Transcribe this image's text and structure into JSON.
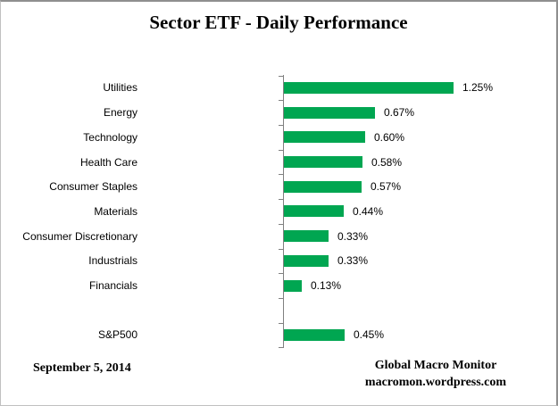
{
  "header": {
    "title": "Sector ETF - Daily Performance"
  },
  "footer": {
    "date": "September 5, 2014",
    "credit_line1": "Global Macro Monitor",
    "credit_line2": "macromon.wordpress.com"
  },
  "chart_data": {
    "type": "bar",
    "orientation": "horizontal",
    "title": "Sector ETF - Daily Performance",
    "xlabel": "",
    "ylabel": "",
    "value_unit": "%",
    "xlim": [
      0,
      2.0
    ],
    "grid": false,
    "legend": false,
    "bar_color": "#00A651",
    "axis_color": "#808080",
    "label_color": "#000000",
    "categories": [
      "Utilities",
      "Energy",
      "Technology",
      "Health Care",
      "Consumer Staples",
      "Materials",
      "Consumer Discretionary",
      "Industrials",
      "Financials",
      "",
      "S&P500"
    ],
    "values": [
      1.25,
      0.67,
      0.6,
      0.58,
      0.57,
      0.44,
      0.33,
      0.33,
      0.13,
      null,
      0.45
    ],
    "value_labels": [
      "1.25%",
      "0.67%",
      "0.60%",
      "0.58%",
      "0.57%",
      "0.44%",
      "0.33%",
      "0.33%",
      "0.13%",
      "",
      "0.45%"
    ]
  }
}
